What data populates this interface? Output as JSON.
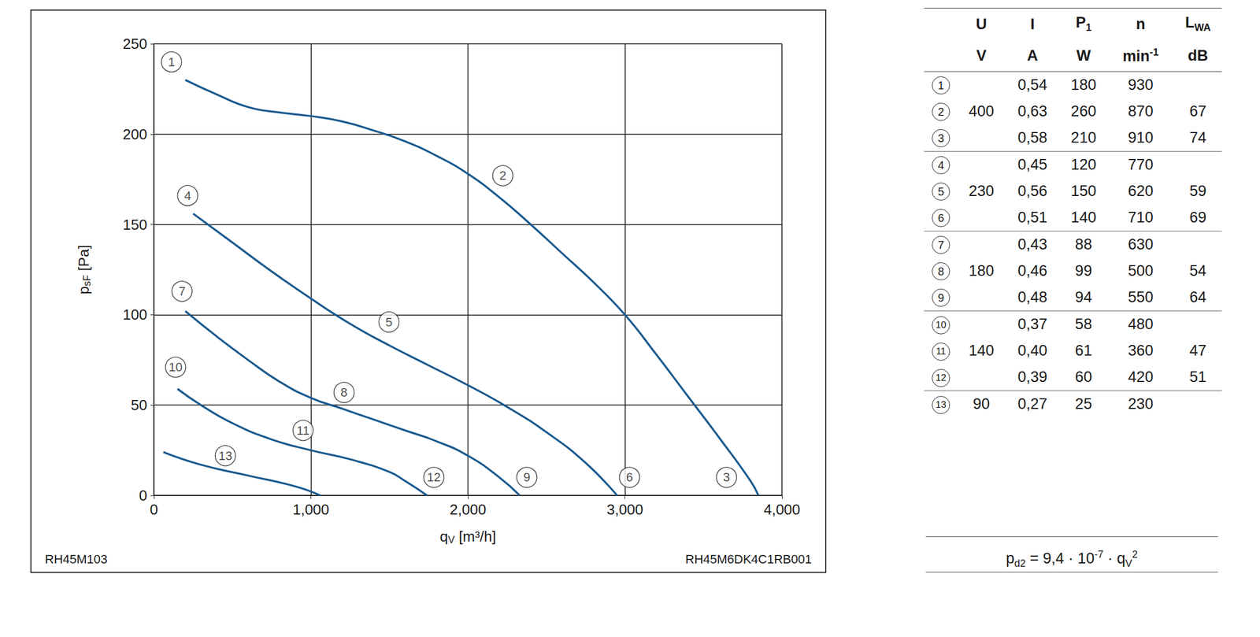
{
  "chart_data": {
    "type": "line",
    "xlabel": [
      {
        "text": "q"
      },
      {
        "text": "V",
        "sub": true
      },
      {
        "text": " [m³/h]"
      }
    ],
    "ylabel": [
      {
        "text": "p"
      },
      {
        "text": "sF",
        "sub": true
      },
      {
        "text": " [Pa]"
      }
    ],
    "xlim": [
      0,
      4000
    ],
    "xticks": [
      0,
      1000,
      2000,
      3000,
      4000
    ],
    "ylim": [
      0,
      250
    ],
    "yticks": [
      0,
      50,
      100,
      150,
      200,
      250
    ],
    "grid": true,
    "series": [
      {
        "color": "#1a5a8f",
        "x": [
          200,
          400,
          600,
          800,
          1000,
          1200,
          1400,
          1600,
          1800,
          2000,
          2200,
          2400,
          2600,
          2800,
          3000,
          3200,
          3400,
          3600,
          3800,
          3850
        ],
        "values": [
          230,
          222,
          215,
          212,
          210,
          207,
          202,
          196,
          188,
          178,
          165,
          150,
          134,
          118,
          100,
          78,
          55,
          32,
          8,
          0
        ]
      },
      {
        "color": "#1a5a8f",
        "x": [
          250,
          500,
          750,
          1000,
          1250,
          1500,
          1750,
          2000,
          2250,
          2500,
          2750,
          2950
        ],
        "values": [
          156,
          140,
          124,
          109,
          95,
          83,
          72,
          61,
          49,
          35,
          18,
          0
        ]
      },
      {
        "color": "#1a5a8f",
        "x": [
          200,
          400,
          600,
          800,
          1000,
          1200,
          1400,
          1600,
          1800,
          2000,
          2200,
          2330
        ],
        "values": [
          102,
          88,
          75,
          63,
          54,
          48,
          42,
          36,
          30,
          22,
          10,
          0
        ]
      },
      {
        "color": "#1a5a8f",
        "x": [
          150,
          300,
          500,
          750,
          1000,
          1250,
          1500,
          1600,
          1740
        ],
        "values": [
          59,
          50,
          40,
          31,
          25,
          20,
          13,
          8,
          0
        ]
      },
      {
        "color": "#1a5a8f",
        "x": [
          60,
          300,
          600,
          900,
          1060
        ],
        "values": [
          24,
          17,
          11,
          5,
          0
        ]
      }
    ],
    "annotations": [
      {
        "text": "1",
        "x": 112,
        "y": 240
      },
      {
        "text": "2",
        "x": 2222,
        "y": 177
      },
      {
        "text": "3",
        "x": 3647,
        "y": 10
      },
      {
        "text": "4",
        "x": 215,
        "y": 166
      },
      {
        "text": "5",
        "x": 1497,
        "y": 96
      },
      {
        "text": "6",
        "x": 3029,
        "y": 10
      },
      {
        "text": "7",
        "x": 179,
        "y": 113
      },
      {
        "text": "8",
        "x": 1211,
        "y": 57
      },
      {
        "text": "9",
        "x": 2375,
        "y": 10
      },
      {
        "text": "10",
        "x": 138,
        "y": 71
      },
      {
        "text": "11",
        "x": 950,
        "y": 36
      },
      {
        "text": "12",
        "x": 1783,
        "y": 10
      },
      {
        "text": "13",
        "x": 455,
        "y": 22
      }
    ],
    "notes": [
      "RH45M103",
      "RH45M6DK4C1RB001"
    ]
  },
  "table": {
    "header": [
      [
        {
          "text": "U"
        }
      ],
      [
        {
          "text": "I"
        }
      ],
      [
        {
          "text": "P"
        },
        {
          "text": "1",
          "sub": true
        }
      ],
      [
        {
          "text": "n"
        }
      ],
      [
        {
          "text": "L"
        },
        {
          "text": "WA",
          "sub": true
        }
      ]
    ],
    "units": [
      [
        {
          "text": "V"
        }
      ],
      [
        {
          "text": "A"
        }
      ],
      [
        {
          "text": "W"
        }
      ],
      [
        {
          "text": "min"
        },
        {
          "text": "-1",
          "sup": true
        }
      ],
      [
        {
          "text": "dB"
        }
      ]
    ],
    "groups": [
      {
        "U": "400",
        "rows": [
          [
            "1",
            "0,54",
            "180",
            "930",
            null
          ],
          [
            "2",
            "0,63",
            "260",
            "870",
            "67"
          ],
          [
            "3",
            "0,58",
            "210",
            "910",
            "74"
          ]
        ]
      },
      {
        "U": "230",
        "rows": [
          [
            "4",
            "0,45",
            "120",
            "770",
            null
          ],
          [
            "5",
            "0,56",
            "150",
            "620",
            "59"
          ],
          [
            "6",
            "0,51",
            "140",
            "710",
            "69"
          ]
        ]
      },
      {
        "U": "180",
        "rows": [
          [
            "7",
            "0,43",
            "88",
            "630",
            null
          ],
          [
            "8",
            "0,46",
            "99",
            "500",
            "54"
          ],
          [
            "9",
            "0,48",
            "94",
            "550",
            "64"
          ]
        ]
      },
      {
        "U": "140",
        "rows": [
          [
            "10",
            "0,37",
            "58",
            "480",
            null
          ],
          [
            "11",
            "0,40",
            "61",
            "360",
            "47"
          ],
          [
            "12",
            "0,39",
            "60",
            "420",
            "51"
          ]
        ]
      },
      {
        "U": "90",
        "rows": [
          [
            "13",
            "0,27",
            "25",
            "230",
            null
          ]
        ]
      }
    ]
  },
  "formula": [
    {
      "text": "p"
    },
    {
      "text": "d2",
      "sub": true
    },
    {
      "text": " = 9,4 · 10"
    },
    {
      "text": "-7",
      "sup": true
    },
    {
      "text": " · q"
    },
    {
      "text": "V",
      "sub": true
    },
    {
      "text": "2",
      "sup": true
    }
  ]
}
